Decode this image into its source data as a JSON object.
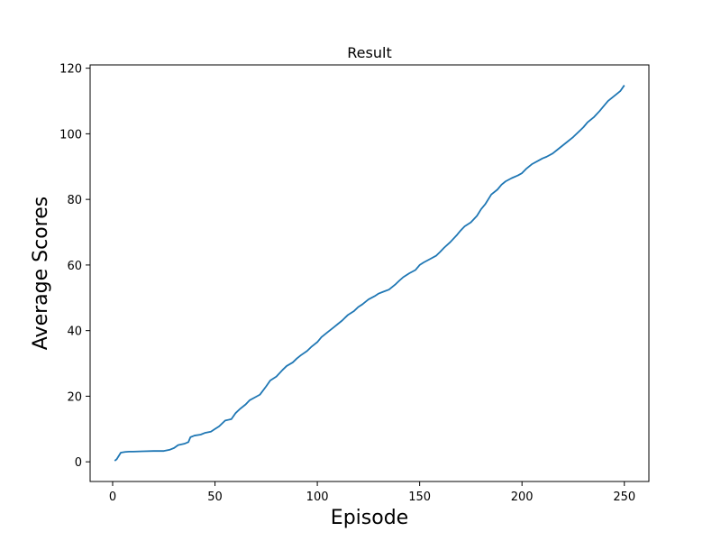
{
  "chart_data": {
    "type": "line",
    "title": "Result",
    "xlabel": "Episode",
    "ylabel": "Average Scores",
    "xlim": [
      -11,
      262
    ],
    "ylim": [
      -6,
      121
    ],
    "xticks": [
      0,
      50,
      100,
      150,
      200,
      250
    ],
    "yticks": [
      0,
      20,
      40,
      60,
      80,
      100,
      120
    ],
    "grid": false,
    "legend": "none",
    "series": [
      {
        "color": "#1f77b4",
        "x": [
          1,
          2,
          3,
          4,
          6,
          8,
          10,
          15,
          20,
          25,
          28,
          30,
          32,
          35,
          37,
          38,
          40,
          43,
          45,
          48,
          50,
          52,
          55,
          58,
          60,
          62,
          65,
          67,
          70,
          72,
          75,
          77,
          80,
          83,
          85,
          88,
          90,
          92,
          95,
          97,
          100,
          102,
          105,
          108,
          110,
          112,
          115,
          118,
          120,
          122,
          125,
          128,
          130,
          132,
          135,
          138,
          140,
          142,
          145,
          148,
          150,
          152,
          155,
          158,
          160,
          162,
          165,
          168,
          170,
          172,
          175,
          178,
          180,
          182,
          185,
          188,
          190,
          192,
          195,
          198,
          200,
          202,
          205,
          208,
          210,
          212,
          215,
          218,
          220,
          222,
          225,
          228,
          230,
          232,
          235,
          238,
          240,
          242,
          245,
          248,
          250
        ],
        "y": [
          0.3,
          0.8,
          1.8,
          2.8,
          3.0,
          3.1,
          3.1,
          3.2,
          3.3,
          3.3,
          3.7,
          4.2,
          5.1,
          5.5,
          6.0,
          7.5,
          8.0,
          8.3,
          8.8,
          9.2,
          10.0,
          10.8,
          12.6,
          13.0,
          14.8,
          16.0,
          17.5,
          18.8,
          19.8,
          20.5,
          23.0,
          24.8,
          26.0,
          28.0,
          29.2,
          30.3,
          31.5,
          32.5,
          33.8,
          35.0,
          36.5,
          38.0,
          39.5,
          41.0,
          42.0,
          43.0,
          44.8,
          46.0,
          47.2,
          48.0,
          49.5,
          50.5,
          51.3,
          51.8,
          52.5,
          54.0,
          55.2,
          56.3,
          57.5,
          58.5,
          60.0,
          60.8,
          61.8,
          62.8,
          64.0,
          65.3,
          67.0,
          69.0,
          70.5,
          71.8,
          73.0,
          75.0,
          77.0,
          78.5,
          81.5,
          83.0,
          84.5,
          85.5,
          86.5,
          87.3,
          88.0,
          89.3,
          90.8,
          91.8,
          92.5,
          93.0,
          94.0,
          95.5,
          96.5,
          97.5,
          99.0,
          100.8,
          102.0,
          103.5,
          105.0,
          107.0,
          108.5,
          110.0,
          111.5,
          113.0,
          114.8
        ]
      }
    ]
  }
}
